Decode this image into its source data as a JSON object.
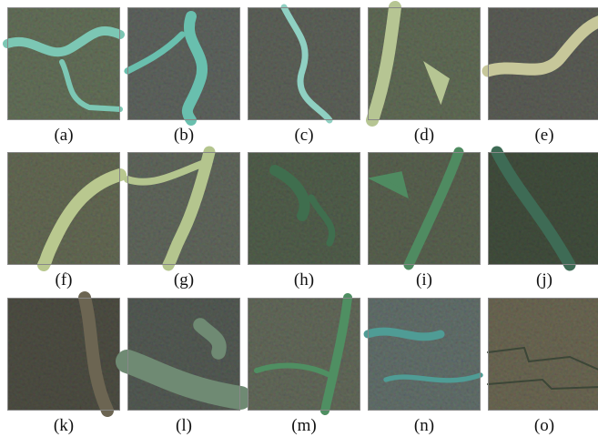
{
  "panels": [
    {
      "label": "(a)"
    },
    {
      "label": "(b)"
    },
    {
      "label": "(c)"
    },
    {
      "label": "(d)"
    },
    {
      "label": "(e)"
    },
    {
      "label": "(f)"
    },
    {
      "label": "(g)"
    },
    {
      "label": "(h)"
    },
    {
      "label": "(i)"
    },
    {
      "label": "(j)"
    },
    {
      "label": "(k)"
    },
    {
      "label": "(l)"
    },
    {
      "label": "(m)"
    },
    {
      "label": "(n)"
    },
    {
      "label": "(o)"
    }
  ]
}
